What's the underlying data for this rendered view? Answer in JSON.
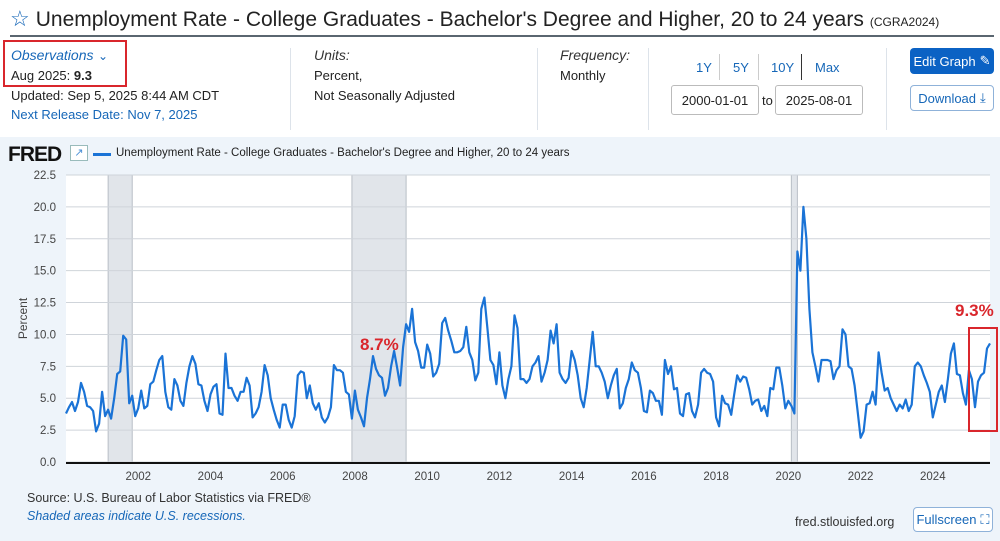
{
  "header": {
    "title": "Unemployment Rate - College Graduates - Bachelor's Degree and Higher, 20 to 24 years",
    "series_id": "(CGRA2024)"
  },
  "observations": {
    "label": "Observations",
    "date": "Aug 2025:",
    "value": "9.3",
    "updated": "Updated: Sep 5, 2025 8:44 AM CDT",
    "next_release": "Next Release Date: Nov 7, 2025"
  },
  "units": {
    "label": "Units:",
    "line1": "Percent,",
    "line2": "Not Seasonally Adjusted"
  },
  "frequency": {
    "label": "Frequency:",
    "value": "Monthly"
  },
  "range": {
    "buttons": [
      "1Y",
      "5Y",
      "10Y",
      "Max"
    ],
    "start": "2000-01-01",
    "to": "to",
    "end": "2025-08-01"
  },
  "actions": {
    "edit": "Edit Graph",
    "download": "Download",
    "fullscreen": "Fullscreen"
  },
  "footer": {
    "source": "Source: U.S. Bureau of Labor Statistics via FRED®",
    "shaded": "Shaded areas indicate U.S. recessions.",
    "site": "fred.stlouisfed.org"
  },
  "brand": "FRED",
  "colors": {
    "line": "#1a73d6",
    "recession": "#e1e5ea",
    "accent": "#0b62c4",
    "annotation": "#d9262c"
  },
  "chart_data": {
    "type": "line",
    "legend": "Unemployment Rate - College Graduates - Bachelor's Degree and Higher, 20 to 24 years",
    "ylabel": "Percent",
    "ylim": [
      0,
      22.5
    ],
    "yticks": [
      "0.0",
      "2.5",
      "5.0",
      "7.5",
      "10.0",
      "12.5",
      "15.0",
      "17.5",
      "20.0",
      "22.5"
    ],
    "xticks": [
      "2002",
      "2004",
      "2006",
      "2008",
      "2010",
      "2012",
      "2014",
      "2016",
      "2018",
      "2020",
      "2022",
      "2024"
    ],
    "x_start": "2000-01",
    "x_end": "2025-08",
    "frequency": "monthly",
    "grid": true,
    "recessions": [
      [
        "2001-03",
        "2001-11"
      ],
      [
        "2007-12",
        "2009-06"
      ],
      [
        "2020-02",
        "2020-04"
      ]
    ],
    "annotations": [
      {
        "text": "8.7%",
        "date": "2009-02"
      },
      {
        "text": "9.3%",
        "date": "2025-08"
      }
    ],
    "values": [
      3.8,
      4.3,
      4.7,
      4.0,
      4.7,
      6.2,
      5.5,
      4.4,
      4.3,
      4.0,
      2.4,
      3.0,
      5.5,
      3.6,
      4.1,
      3.4,
      5.0,
      6.9,
      7.1,
      9.9,
      9.6,
      4.6,
      5.2,
      3.6,
      4.2,
      5.6,
      4.2,
      4.4,
      6.1,
      6.3,
      7.2,
      8.0,
      8.3,
      5.5,
      4.3,
      4.1,
      6.5,
      6.0,
      4.8,
      4.4,
      6.2,
      7.5,
      8.3,
      7.7,
      6.1,
      6.0,
      4.8,
      4.0,
      5.3,
      5.9,
      6.1,
      3.8,
      3.7,
      8.5,
      5.8,
      5.8,
      5.2,
      4.8,
      5.5,
      5.5,
      6.6,
      6.0,
      3.5,
      3.8,
      4.3,
      5.5,
      7.6,
      6.8,
      5.0,
      4.1,
      3.3,
      2.7,
      4.5,
      4.5,
      3.3,
      2.7,
      3.6,
      6.8,
      7.1,
      7.0,
      5.0,
      6.0,
      4.6,
      4.1,
      4.6,
      3.5,
      3.1,
      3.5,
      4.3,
      7.6,
      7.2,
      7.2,
      7.0,
      5.5,
      5.3,
      3.4,
      5.6,
      4.1,
      3.5,
      2.8,
      5.0,
      6.5,
      8.3,
      7.3,
      6.8,
      6.6,
      5.2,
      5.8,
      7.5,
      8.7,
      7.4,
      6.0,
      9.0,
      10.8,
      10.2,
      12.0,
      9.4,
      8.7,
      7.4,
      7.4,
      9.2,
      8.5,
      6.7,
      7.0,
      7.7,
      10.9,
      11.3,
      10.3,
      9.5,
      8.6,
      8.6,
      8.7,
      9.0,
      10.6,
      8.6,
      8.0,
      6.4,
      7.0,
      12.0,
      12.9,
      10.5,
      8.0,
      7.6,
      6.1,
      8.6,
      6.0,
      5.0,
      6.5,
      7.5,
      11.5,
      10.5,
      6.5,
      6.5,
      6.2,
      6.5,
      7.5,
      7.8,
      8.3,
      6.3,
      7.0,
      8.0,
      10.3,
      9.3,
      10.8,
      7.0,
      6.5,
      6.2,
      6.6,
      8.7,
      8.0,
      6.8,
      5.0,
      4.3,
      5.8,
      8.0,
      10.2,
      7.5,
      7.5,
      7.0,
      6.3,
      5.0,
      6.0,
      6.8,
      7.3,
      4.2,
      4.6,
      5.8,
      6.5,
      7.8,
      7.2,
      7.0,
      5.8,
      4.0,
      3.9,
      5.6,
      5.4,
      4.8,
      4.8,
      3.7,
      8.0,
      6.9,
      7.5,
      5.7,
      5.8,
      3.8,
      3.6,
      5.3,
      5.4,
      4.0,
      3.5,
      4.5,
      7.0,
      7.3,
      7.0,
      6.9,
      6.3,
      3.5,
      2.8,
      5.2,
      4.6,
      4.5,
      3.7,
      5.3,
      6.8,
      6.3,
      6.7,
      6.6,
      5.7,
      4.5,
      4.8,
      4.9,
      4.0,
      4.4,
      3.6,
      5.8,
      5.7,
      7.4,
      7.4,
      6.0,
      4.2,
      4.8,
      4.4,
      3.8,
      16.5,
      15.0,
      20.0,
      17.5,
      12.0,
      8.6,
      7.5,
      6.3,
      8.0,
      8.0,
      8.0,
      7.9,
      6.5,
      7.2,
      7.5,
      10.4,
      10.0,
      7.5,
      7.3,
      6.0,
      4.0,
      1.9,
      2.4,
      4.5,
      4.6,
      5.5,
      4.5,
      8.6,
      7.0,
      5.6,
      5.8,
      5.0,
      4.5,
      4.0,
      4.5,
      4.2,
      4.9,
      4.0,
      4.5,
      7.5,
      7.8,
      7.5,
      6.8,
      6.2,
      5.5,
      3.5,
      4.5,
      5.5,
      6.0,
      4.7,
      6.5,
      8.5,
      9.3,
      6.9,
      6.8,
      5.4,
      4.5,
      7.2,
      6.5,
      4.3,
      6.3,
      6.8,
      7.0,
      8.9,
      9.3
    ]
  }
}
